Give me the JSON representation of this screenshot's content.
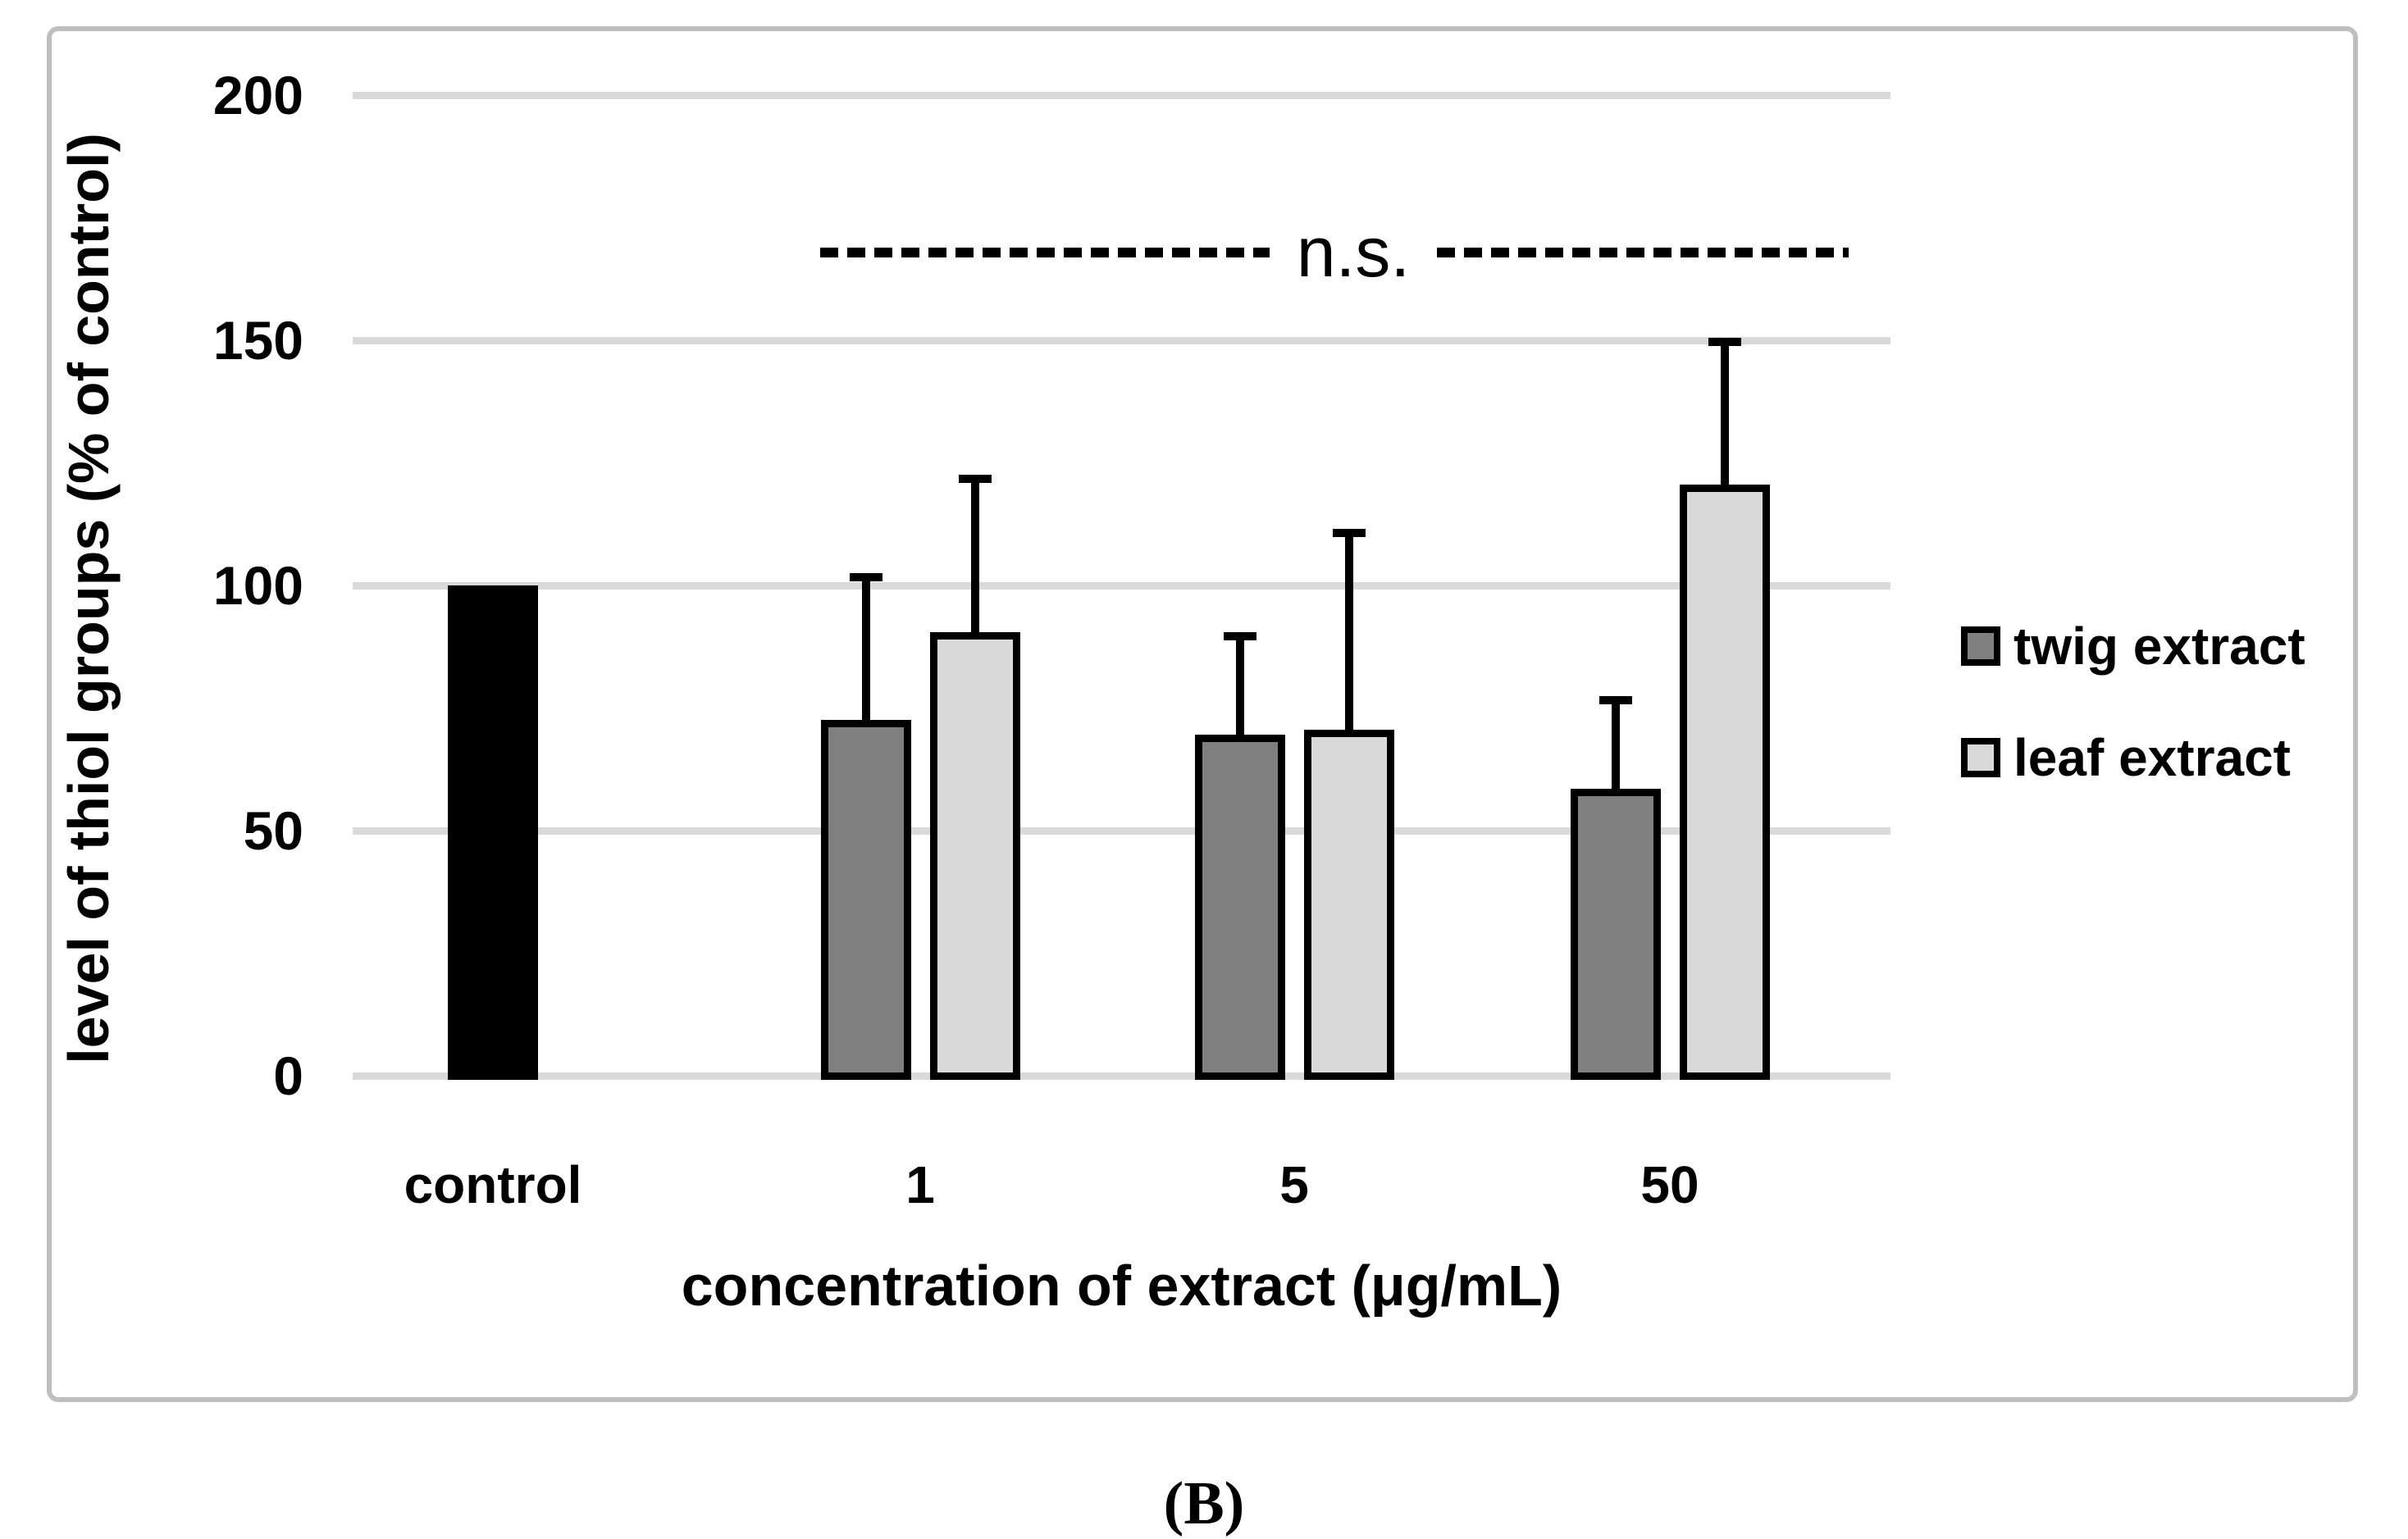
{
  "figure": {
    "panel_label": "(B)",
    "background": "#ffffff",
    "border_color": "#bfbfbf",
    "legend": [
      {
        "label": "twig extract",
        "color": "#808080"
      },
      {
        "label": "leaf extract",
        "color": "#d9d9d9"
      }
    ]
  },
  "chart_data": {
    "type": "bar",
    "title": "",
    "ylabel": "level of thiol groups (% of control)",
    "xlabel": "concentration of extract (μg/mL)",
    "categories": [
      "control",
      "1",
      "5",
      "50"
    ],
    "ylim": [
      0,
      200
    ],
    "yticks": [
      0,
      50,
      100,
      150,
      200
    ],
    "grid": true,
    "gridline_color": "#d9d9d9",
    "bar_outline_color": "#000000",
    "series": [
      {
        "name": "control",
        "color": "#000000",
        "outline": false,
        "points": [
          {
            "category": "control",
            "value": 100,
            "error": null
          }
        ]
      },
      {
        "name": "twig extract",
        "color": "#808080",
        "outline": true,
        "points": [
          {
            "category": "1",
            "value": 72.5,
            "error": 30
          },
          {
            "category": "5",
            "value": 69.5,
            "error": 21
          },
          {
            "category": "50",
            "value": 58.5,
            "error": 19
          }
        ]
      },
      {
        "name": "leaf extract",
        "color": "#d9d9d9",
        "outline": true,
        "points": [
          {
            "category": "1",
            "value": 90.5,
            "error": 32
          },
          {
            "category": "5",
            "value": 70.5,
            "error": 41
          },
          {
            "category": "50",
            "value": 120.5,
            "error": 30
          }
        ]
      }
    ],
    "annotation": {
      "text": "n.s.",
      "style": "dashed-line",
      "y_value": 168,
      "spans_categories": [
        "1",
        "50"
      ]
    },
    "legend_position": "right-middle"
  }
}
